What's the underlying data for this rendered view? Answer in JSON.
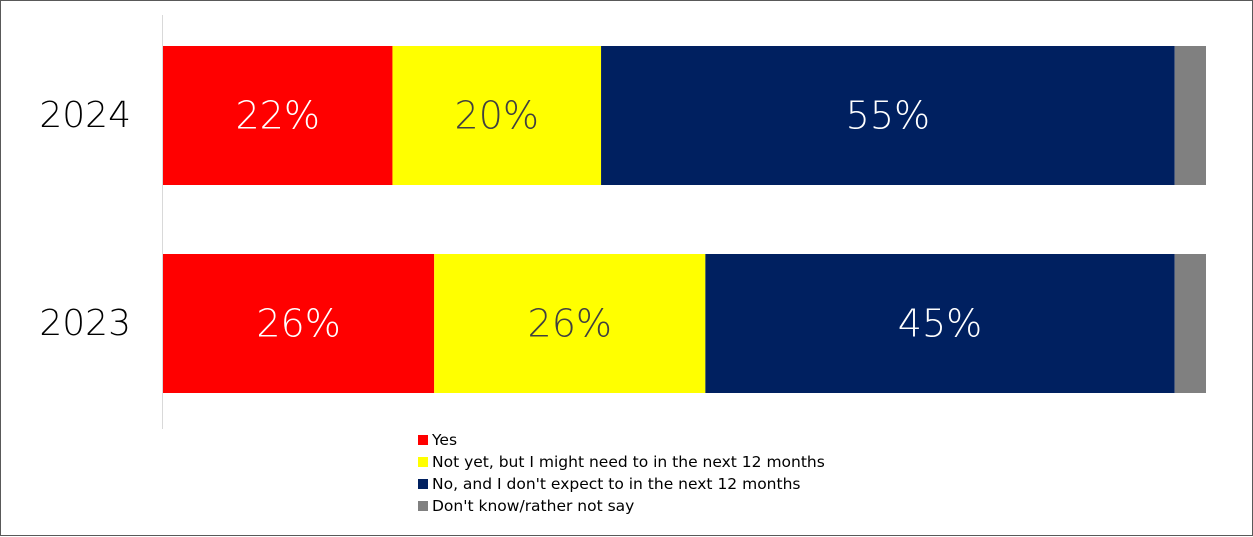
{
  "chart_data": {
    "type": "bar",
    "orientation": "horizontal",
    "stacked": true,
    "categories": [
      "2024",
      "2023"
    ],
    "series": [
      {
        "name": "Yes",
        "color": "#ff0000",
        "label_color": "#ffffff",
        "values": [
          22,
          26
        ],
        "labels": [
          "22%",
          "26%"
        ]
      },
      {
        "name": "Not yet, but I might need to in the next 12 months",
        "color": "#ffff00",
        "label_color": "#404040",
        "values": [
          20,
          26
        ],
        "labels": [
          "20%",
          "26%"
        ]
      },
      {
        "name": "No, and I don't expect to in the next 12 months",
        "color": "#002060",
        "label_color": "#ffffff",
        "values": [
          55,
          45
        ],
        "labels": [
          "55%",
          "45%"
        ]
      },
      {
        "name": "Don't know/rather not say",
        "color": "#808080",
        "label_color": "#ffffff",
        "values": [
          3,
          3
        ],
        "labels": [
          "",
          ""
        ]
      }
    ],
    "xlim": [
      0,
      100
    ],
    "legend_position": "bottom",
    "grid": false
  }
}
